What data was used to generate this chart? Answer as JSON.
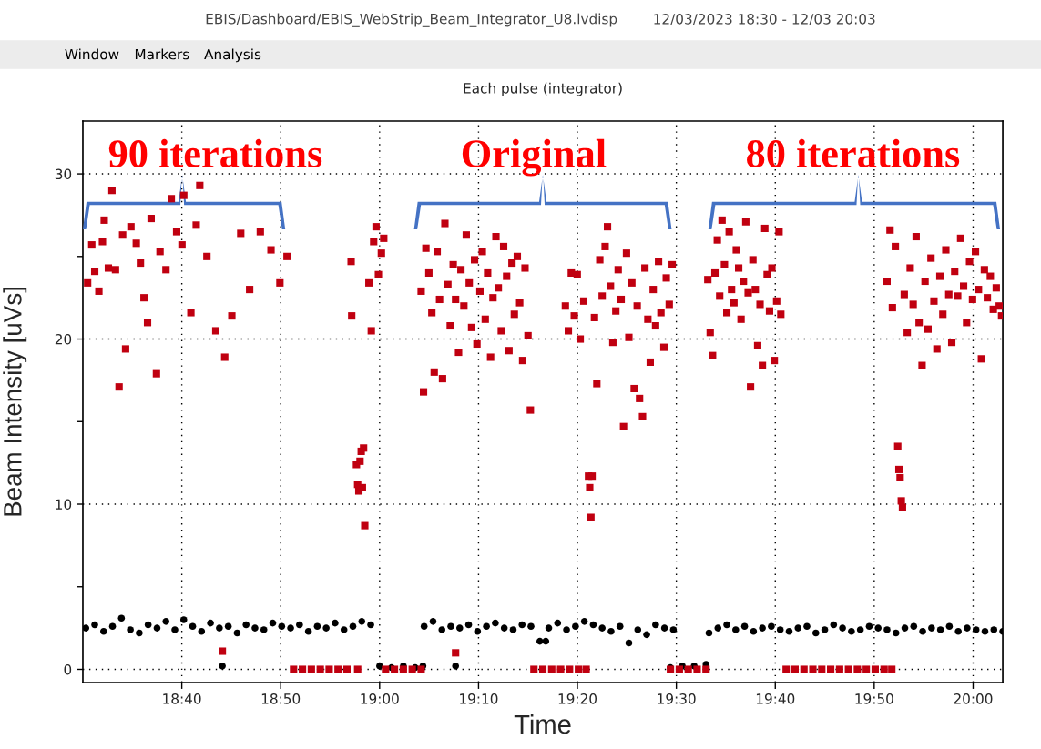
{
  "chart_data": {
    "type": "scatter",
    "title": "Each pulse (integrator)",
    "xlabel": "Time",
    "ylabel": "Beam Intensity [uVs]",
    "annotations": [
      "EBIS/Dashboard/EBIS_WebStrip_Beam_Integrator_U8.lvdisp",
      "12/03/2023 18:30 - 12/03 20:03",
      "Window",
      "Markers",
      "Analysis",
      "90 iterations",
      "Original",
      "80 iterations"
    ],
    "xlim": [
      18.5,
      20.05
    ],
    "ylim": [
      -0.8,
      33.2
    ],
    "xticks": [
      {
        "value": 18.6667,
        "label": "18:40"
      },
      {
        "value": 18.8333,
        "label": "18:50"
      },
      {
        "value": 19.0,
        "label": "19:00"
      },
      {
        "value": 19.1667,
        "label": "19:10"
      },
      {
        "value": 19.3333,
        "label": "19:20"
      },
      {
        "value": 19.5,
        "label": "19:30"
      },
      {
        "value": 19.6667,
        "label": "19:40"
      },
      {
        "value": 19.8333,
        "label": "19:50"
      },
      {
        "value": 20.0,
        "label": "20:00"
      }
    ],
    "yticks": [
      0,
      {
        "value": 5,
        "label": null
      },
      10,
      {
        "value": 15,
        "label": null
      },
      20,
      {
        "value": 25,
        "label": null
      },
      30
    ],
    "grid": true,
    "series": [
      {
        "color": "#000000",
        "marker": "circle",
        "x": [
          18.505,
          18.52,
          18.535,
          18.55,
          18.565,
          18.58,
          18.595,
          18.61,
          18.625,
          18.64,
          18.655,
          18.67,
          18.685,
          18.7,
          18.715,
          18.73,
          18.745,
          18.76,
          18.775,
          18.79,
          18.805,
          18.82,
          18.835,
          18.85,
          18.865,
          18.88,
          18.895,
          18.91,
          18.925,
          18.94,
          18.955,
          18.97,
          18.985,
          18.735,
          19.0,
          19.02,
          19.04,
          19.06,
          19.073,
          19.075,
          19.09,
          19.105,
          19.12,
          19.135,
          19.15,
          19.165,
          19.18,
          19.195,
          19.21,
          19.225,
          19.24,
          19.255,
          19.27,
          19.285,
          19.3,
          19.315,
          19.33,
          19.345,
          19.36,
          19.375,
          19.39,
          19.405,
          19.42,
          19.435,
          19.45,
          19.465,
          19.48,
          19.495,
          19.128,
          19.28,
          19.49,
          19.51,
          19.53,
          19.55,
          19.555,
          19.57,
          19.585,
          19.6,
          19.615,
          19.63,
          19.645,
          19.66,
          19.675,
          19.69,
          19.705,
          19.72,
          19.735,
          19.75,
          19.765,
          19.78,
          19.795,
          19.81,
          19.825,
          19.84,
          19.855,
          19.87,
          19.885,
          19.9,
          19.915,
          19.93,
          19.945,
          19.96,
          19.975,
          19.99,
          20.005,
          20.02,
          20.035,
          20.05
        ],
        "values": [
          2.5,
          2.7,
          2.3,
          2.6,
          3.1,
          2.4,
          2.2,
          2.7,
          2.5,
          2.9,
          2.4,
          3.0,
          2.6,
          2.3,
          2.8,
          2.5,
          2.6,
          2.2,
          2.7,
          2.5,
          2.4,
          2.8,
          2.6,
          2.5,
          2.7,
          2.3,
          2.6,
          2.5,
          2.8,
          2.4,
          2.6,
          2.9,
          2.7,
          0.2,
          0.2,
          0.1,
          0.2,
          0.1,
          0.2,
          2.6,
          2.9,
          2.4,
          2.6,
          2.5,
          2.7,
          2.3,
          2.6,
          2.8,
          2.5,
          2.4,
          2.7,
          2.6,
          1.7,
          2.5,
          2.8,
          2.4,
          2.6,
          2.9,
          2.7,
          2.5,
          2.3,
          2.6,
          1.6,
          2.4,
          2.1,
          2.7,
          2.5,
          2.4,
          0.2,
          1.7,
          0.1,
          0.2,
          0.2,
          0.3,
          2.2,
          2.5,
          2.7,
          2.4,
          2.6,
          2.3,
          2.5,
          2.6,
          2.4,
          2.3,
          2.5,
          2.6,
          2.2,
          2.4,
          2.7,
          2.5,
          2.3,
          2.4,
          2.6,
          2.5,
          2.4,
          2.2,
          2.5,
          2.6,
          2.3,
          2.5,
          2.4,
          2.6,
          2.3,
          2.5,
          2.4,
          2.3,
          2.4,
          2.3
        ]
      },
      {
        "color": "#c00010",
        "marker": "square",
        "x": [
          18.508,
          18.515,
          18.52,
          18.527,
          18.533,
          18.536,
          18.543,
          18.549,
          18.555,
          18.561,
          18.567,
          18.572,
          18.581,
          18.59,
          18.597,
          18.603,
          18.609,
          18.615,
          18.624,
          18.63,
          18.64,
          18.649,
          18.658,
          18.667,
          18.67,
          18.682,
          18.691,
          18.697,
          18.709,
          18.724,
          18.739,
          18.751,
          18.766,
          18.781,
          18.799,
          18.817,
          18.832,
          18.844,
          18.735,
          18.952,
          18.953,
          18.961,
          18.963,
          18.965,
          18.967,
          18.969,
          18.971,
          18.973,
          18.975,
          18.982,
          18.986,
          18.99,
          18.994,
          18.998,
          19.003,
          19.007,
          18.855,
          18.87,
          18.885,
          18.9,
          18.915,
          18.93,
          18.945,
          18.963,
          19.01,
          19.025,
          19.04,
          19.055,
          19.07,
          19.07,
          19.074,
          19.078,
          19.083,
          19.088,
          19.092,
          19.097,
          19.101,
          19.106,
          19.11,
          19.115,
          19.119,
          19.124,
          19.128,
          19.133,
          19.137,
          19.142,
          19.146,
          19.151,
          19.155,
          19.16,
          19.164,
          19.169,
          19.173,
          19.178,
          19.182,
          19.187,
          19.191,
          19.196,
          19.2,
          19.205,
          19.209,
          19.214,
          19.218,
          19.223,
          19.227,
          19.232,
          19.236,
          19.241,
          19.245,
          19.25,
          19.254,
          19.128,
          19.26,
          19.275,
          19.29,
          19.305,
          19.32,
          19.335,
          19.348,
          19.313,
          19.318,
          19.323,
          19.328,
          19.333,
          19.338,
          19.344,
          19.352,
          19.354,
          19.356,
          19.358,
          19.362,
          19.366,
          19.371,
          19.375,
          19.38,
          19.384,
          19.389,
          19.393,
          19.398,
          19.402,
          19.407,
          19.411,
          19.416,
          19.42,
          19.425,
          19.429,
          19.434,
          19.438,
          19.443,
          19.447,
          19.452,
          19.456,
          19.461,
          19.465,
          19.47,
          19.474,
          19.479,
          19.483,
          19.488,
          19.493,
          19.49,
          19.505,
          19.52,
          19.535,
          19.55,
          19.553,
          19.557,
          19.561,
          19.565,
          19.569,
          19.573,
          19.577,
          19.581,
          19.585,
          19.589,
          19.593,
          19.597,
          19.601,
          19.605,
          19.609,
          19.613,
          19.617,
          19.621,
          19.625,
          19.629,
          19.633,
          19.637,
          19.641,
          19.645,
          19.649,
          19.653,
          19.657,
          19.661,
          19.665,
          19.669,
          19.673,
          19.676,
          19.685,
          19.7,
          19.715,
          19.73,
          19.745,
          19.76,
          19.775,
          19.79,
          19.805,
          19.82,
          19.835,
          19.85,
          19.863,
          19.855,
          19.86,
          19.864,
          19.869,
          19.873,
          19.875,
          19.877,
          19.879,
          19.881,
          19.884,
          19.889,
          19.894,
          19.899,
          19.904,
          19.909,
          19.914,
          19.919,
          19.924,
          19.929,
          19.934,
          19.939,
          19.944,
          19.949,
          19.954,
          19.959,
          19.964,
          19.969,
          19.974,
          19.979,
          19.984,
          19.989,
          19.994,
          19.999,
          20.004,
          20.009,
          20.014,
          20.019,
          20.024,
          20.029,
          20.034,
          20.039,
          20.044,
          20.048
        ],
        "values": [
          23.4,
          25.7,
          24.1,
          22.9,
          25.9,
          27.2,
          24.3,
          29.0,
          24.2,
          17.1,
          26.3,
          19.4,
          26.8,
          25.8,
          24.6,
          22.5,
          21.0,
          27.3,
          17.9,
          25.3,
          24.2,
          28.5,
          26.5,
          25.7,
          28.7,
          21.6,
          26.9,
          29.3,
          25.0,
          20.5,
          18.9,
          21.4,
          26.4,
          23.0,
          26.5,
          25.4,
          23.4,
          25.0,
          1.1,
          24.7,
          21.4,
          12.4,
          11.2,
          10.8,
          12.6,
          13.2,
          11.0,
          13.4,
          8.7,
          23.4,
          20.5,
          25.9,
          26.8,
          23.9,
          25.2,
          26.1,
          0,
          0,
          0,
          0,
          0,
          0,
          0,
          0,
          0,
          0,
          0,
          0,
          0,
          22.9,
          16.8,
          25.5,
          24.0,
          21.6,
          18.0,
          25.3,
          22.4,
          17.6,
          27.0,
          23.3,
          20.8,
          24.5,
          22.4,
          19.2,
          24.2,
          22.0,
          26.3,
          23.4,
          20.7,
          24.8,
          19.7,
          22.9,
          25.3,
          21.2,
          24.0,
          18.9,
          22.5,
          26.2,
          23.1,
          20.5,
          25.6,
          23.8,
          19.3,
          24.6,
          21.5,
          25.0,
          22.2,
          18.7,
          24.3,
          20.2,
          15.7,
          1.0,
          0,
          0,
          0,
          0,
          0,
          0,
          0,
          22.0,
          20.5,
          24.0,
          21.4,
          23.9,
          20.0,
          22.3,
          11.7,
          11.0,
          9.2,
          11.7,
          21.3,
          17.3,
          24.8,
          22.6,
          25.6,
          26.8,
          23.2,
          19.8,
          21.7,
          24.2,
          22.4,
          14.7,
          25.2,
          20.1,
          23.4,
          17.0,
          22.0,
          16.4,
          15.3,
          24.3,
          21.2,
          18.6,
          23.0,
          20.8,
          24.7,
          21.6,
          19.5,
          23.7,
          22.1,
          24.5,
          0,
          0,
          0,
          0,
          0,
          23.6,
          20.4,
          19.0,
          24.0,
          26.0,
          22.6,
          27.2,
          24.5,
          21.6,
          26.5,
          23.0,
          22.2,
          25.4,
          24.3,
          21.2,
          23.5,
          27.1,
          22.8,
          17.1,
          24.8,
          23.0,
          19.6,
          22.1,
          18.4,
          26.7,
          23.9,
          21.7,
          24.3,
          18.7,
          22.3,
          26.5,
          21.5,
          0,
          0,
          0,
          0,
          0,
          0,
          0,
          0,
          0,
          0,
          0,
          0,
          0,
          23.5,
          26.6,
          21.9,
          25.6,
          13.5,
          12.1,
          11.6,
          10.2,
          9.8,
          22.7,
          20.4,
          24.3,
          22.1,
          26.2,
          21.0,
          18.4,
          23.5,
          20.6,
          24.9,
          22.3,
          19.4,
          23.8,
          21.5,
          25.4,
          22.7,
          19.8,
          24.1,
          22.6,
          26.1,
          23.2,
          21.0,
          24.7,
          22.4,
          25.3,
          23.0,
          18.8,
          24.2,
          22.5,
          23.8,
          21.8,
          23.1,
          22.0,
          21.4
        ]
      }
    ]
  }
}
